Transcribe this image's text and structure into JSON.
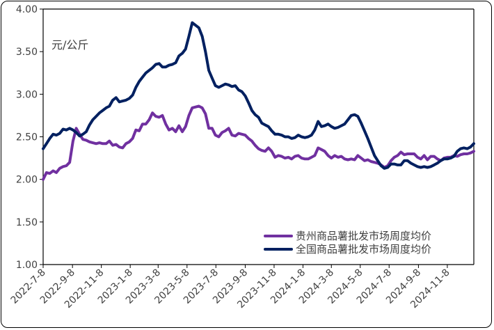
{
  "chart_data": {
    "type": "line",
    "unit_label": "元/公斤",
    "ylim": [
      1.0,
      4.0
    ],
    "yticks": [
      "1.00",
      "1.50",
      "2.00",
      "2.50",
      "3.00",
      "3.50",
      "4.00"
    ],
    "xticks": [
      "2022-7-8",
      "2022-9-8",
      "2022-11-8",
      "2023-1-8",
      "2023-3-8",
      "2023-5-8",
      "2023-7-8",
      "2023-9-8",
      "2023-11-8",
      "2024-1-8",
      "2024-3-8",
      "2024-5-8",
      "2024-7-8",
      "2024-9-8",
      "2024-11-8"
    ],
    "x_start": "2022-07-08",
    "x_end": "2025-01-03",
    "grid": false,
    "legend_position": "bottom-right",
    "series": [
      {
        "name": "贵州商品薯批发市场周度均价",
        "color": "#7030A0",
        "points": [
          [
            "2022-07-08",
            2.0
          ],
          [
            "2022-07-15",
            2.08
          ],
          [
            "2022-07-22",
            2.07
          ],
          [
            "2022-07-29",
            2.1
          ],
          [
            "2022-08-05",
            2.08
          ],
          [
            "2022-08-12",
            2.13
          ],
          [
            "2022-08-19",
            2.15
          ],
          [
            "2022-08-26",
            2.16
          ],
          [
            "2022-09-02",
            2.2
          ],
          [
            "2022-09-09",
            2.45
          ],
          [
            "2022-09-16",
            2.6
          ],
          [
            "2022-09-23",
            2.53
          ],
          [
            "2022-09-30",
            2.47
          ],
          [
            "2022-10-07",
            2.46
          ],
          [
            "2022-10-14",
            2.44
          ],
          [
            "2022-10-21",
            2.43
          ],
          [
            "2022-10-28",
            2.42
          ],
          [
            "2022-11-04",
            2.43
          ],
          [
            "2022-11-11",
            2.42
          ],
          [
            "2022-11-18",
            2.42
          ],
          [
            "2022-11-25",
            2.45
          ],
          [
            "2022-12-02",
            2.4
          ],
          [
            "2022-12-09",
            2.41
          ],
          [
            "2022-12-16",
            2.38
          ],
          [
            "2022-12-23",
            2.37
          ],
          [
            "2022-12-30",
            2.42
          ],
          [
            "2023-01-06",
            2.44
          ],
          [
            "2023-01-13",
            2.48
          ],
          [
            "2023-01-20",
            2.58
          ],
          [
            "2023-01-27",
            2.57
          ],
          [
            "2023-02-03",
            2.65
          ],
          [
            "2023-02-10",
            2.65
          ],
          [
            "2023-02-17",
            2.7
          ],
          [
            "2023-02-24",
            2.78
          ],
          [
            "2023-03-03",
            2.74
          ],
          [
            "2023-03-10",
            2.73
          ],
          [
            "2023-03-17",
            2.75
          ],
          [
            "2023-03-24",
            2.65
          ],
          [
            "2023-03-31",
            2.58
          ],
          [
            "2023-04-07",
            2.6
          ],
          [
            "2023-04-14",
            2.56
          ],
          [
            "2023-04-21",
            2.63
          ],
          [
            "2023-04-28",
            2.56
          ],
          [
            "2023-05-05",
            2.62
          ],
          [
            "2023-05-12",
            2.75
          ],
          [
            "2023-05-19",
            2.84
          ],
          [
            "2023-05-26",
            2.85
          ],
          [
            "2023-06-02",
            2.86
          ],
          [
            "2023-06-09",
            2.84
          ],
          [
            "2023-06-16",
            2.77
          ],
          [
            "2023-06-23",
            2.6
          ],
          [
            "2023-06-30",
            2.6
          ],
          [
            "2023-07-07",
            2.52
          ],
          [
            "2023-07-14",
            2.5
          ],
          [
            "2023-07-21",
            2.55
          ],
          [
            "2023-07-28",
            2.57
          ],
          [
            "2023-08-04",
            2.6
          ],
          [
            "2023-08-11",
            2.52
          ],
          [
            "2023-08-18",
            2.51
          ],
          [
            "2023-08-25",
            2.54
          ],
          [
            "2023-09-01",
            2.53
          ],
          [
            "2023-09-08",
            2.52
          ],
          [
            "2023-09-15",
            2.48
          ],
          [
            "2023-09-22",
            2.45
          ],
          [
            "2023-09-29",
            2.4
          ],
          [
            "2023-10-06",
            2.36
          ],
          [
            "2023-10-13",
            2.34
          ],
          [
            "2023-10-20",
            2.33
          ],
          [
            "2023-10-27",
            2.37
          ],
          [
            "2023-11-03",
            2.33
          ],
          [
            "2023-11-10",
            2.26
          ],
          [
            "2023-11-17",
            2.28
          ],
          [
            "2023-11-24",
            2.27
          ],
          [
            "2023-12-01",
            2.25
          ],
          [
            "2023-12-08",
            2.26
          ],
          [
            "2023-12-15",
            2.24
          ],
          [
            "2023-12-22",
            2.27
          ],
          [
            "2023-12-29",
            2.28
          ],
          [
            "2024-01-05",
            2.25
          ],
          [
            "2024-01-12",
            2.24
          ],
          [
            "2024-01-19",
            2.24
          ],
          [
            "2024-01-26",
            2.26
          ],
          [
            "2024-02-02",
            2.28
          ],
          [
            "2024-02-09",
            2.37
          ],
          [
            "2024-02-16",
            2.35
          ],
          [
            "2024-02-23",
            2.33
          ],
          [
            "2024-03-01",
            2.28
          ],
          [
            "2024-03-08",
            2.25
          ],
          [
            "2024-03-15",
            2.28
          ],
          [
            "2024-03-22",
            2.26
          ],
          [
            "2024-03-29",
            2.27
          ],
          [
            "2024-04-05",
            2.24
          ],
          [
            "2024-04-12",
            2.23
          ],
          [
            "2024-04-19",
            2.24
          ],
          [
            "2024-04-26",
            2.23
          ],
          [
            "2024-05-03",
            2.28
          ],
          [
            "2024-05-10",
            2.25
          ],
          [
            "2024-05-17",
            2.22
          ],
          [
            "2024-05-24",
            2.23
          ],
          [
            "2024-05-31",
            2.21
          ],
          [
            "2024-06-07",
            2.2
          ],
          [
            "2024-06-14",
            2.19
          ],
          [
            "2024-06-21",
            2.17
          ],
          [
            "2024-06-28",
            2.14
          ],
          [
            "2024-07-05",
            2.16
          ],
          [
            "2024-07-12",
            2.22
          ],
          [
            "2024-07-19",
            2.26
          ],
          [
            "2024-07-26",
            2.28
          ],
          [
            "2024-08-02",
            2.32
          ],
          [
            "2024-08-09",
            2.29
          ],
          [
            "2024-08-16",
            2.3
          ],
          [
            "2024-08-23",
            2.3
          ],
          [
            "2024-08-30",
            2.3
          ],
          [
            "2024-09-06",
            2.26
          ],
          [
            "2024-09-13",
            2.24
          ],
          [
            "2024-09-20",
            2.28
          ],
          [
            "2024-09-27",
            2.23
          ],
          [
            "2024-10-04",
            2.27
          ],
          [
            "2024-10-11",
            2.27
          ],
          [
            "2024-10-18",
            2.24
          ],
          [
            "2024-10-25",
            2.22
          ],
          [
            "2024-11-01",
            2.25
          ],
          [
            "2024-11-08",
            2.26
          ],
          [
            "2024-11-15",
            2.26
          ],
          [
            "2024-11-22",
            2.28
          ],
          [
            "2024-11-29",
            2.27
          ],
          [
            "2024-12-06",
            2.29
          ],
          [
            "2024-12-13",
            2.3
          ],
          [
            "2024-12-20",
            2.3
          ],
          [
            "2024-12-27",
            2.31
          ],
          [
            "2025-01-03",
            2.33
          ]
        ]
      },
      {
        "name": "全国商品薯批发市场周度均价",
        "color": "#002060",
        "points": [
          [
            "2022-07-08",
            2.36
          ],
          [
            "2022-07-15",
            2.42
          ],
          [
            "2022-07-22",
            2.48
          ],
          [
            "2022-07-29",
            2.53
          ],
          [
            "2022-08-05",
            2.52
          ],
          [
            "2022-08-12",
            2.54
          ],
          [
            "2022-08-19",
            2.59
          ],
          [
            "2022-08-26",
            2.58
          ],
          [
            "2022-09-02",
            2.6
          ],
          [
            "2022-09-09",
            2.58
          ],
          [
            "2022-09-16",
            2.55
          ],
          [
            "2022-09-23",
            2.51
          ],
          [
            "2022-09-30",
            2.53
          ],
          [
            "2022-10-07",
            2.56
          ],
          [
            "2022-10-14",
            2.64
          ],
          [
            "2022-10-21",
            2.7
          ],
          [
            "2022-10-28",
            2.74
          ],
          [
            "2022-11-04",
            2.78
          ],
          [
            "2022-11-11",
            2.81
          ],
          [
            "2022-11-18",
            2.84
          ],
          [
            "2022-11-25",
            2.86
          ],
          [
            "2022-12-02",
            2.93
          ],
          [
            "2022-12-09",
            2.96
          ],
          [
            "2022-12-16",
            2.91
          ],
          [
            "2022-12-23",
            2.92
          ],
          [
            "2022-12-30",
            2.93
          ],
          [
            "2023-01-06",
            2.95
          ],
          [
            "2023-01-13",
            2.99
          ],
          [
            "2023-01-20",
            3.08
          ],
          [
            "2023-01-27",
            3.15
          ],
          [
            "2023-02-03",
            3.2
          ],
          [
            "2023-02-10",
            3.25
          ],
          [
            "2023-02-17",
            3.28
          ],
          [
            "2023-02-24",
            3.31
          ],
          [
            "2023-03-03",
            3.35
          ],
          [
            "2023-03-10",
            3.36
          ],
          [
            "2023-03-17",
            3.32
          ],
          [
            "2023-03-24",
            3.32
          ],
          [
            "2023-03-31",
            3.34
          ],
          [
            "2023-04-07",
            3.35
          ],
          [
            "2023-04-14",
            3.37
          ],
          [
            "2023-04-21",
            3.45
          ],
          [
            "2023-04-28",
            3.48
          ],
          [
            "2023-05-05",
            3.53
          ],
          [
            "2023-05-12",
            3.68
          ],
          [
            "2023-05-19",
            3.84
          ],
          [
            "2023-05-26",
            3.81
          ],
          [
            "2023-06-02",
            3.78
          ],
          [
            "2023-06-09",
            3.68
          ],
          [
            "2023-06-16",
            3.5
          ],
          [
            "2023-06-23",
            3.28
          ],
          [
            "2023-06-30",
            3.19
          ],
          [
            "2023-07-07",
            3.1
          ],
          [
            "2023-07-14",
            3.08
          ],
          [
            "2023-07-21",
            3.1
          ],
          [
            "2023-07-28",
            3.12
          ],
          [
            "2023-08-04",
            3.11
          ],
          [
            "2023-08-11",
            3.09
          ],
          [
            "2023-08-18",
            3.1
          ],
          [
            "2023-08-25",
            3.05
          ],
          [
            "2023-09-01",
            3.03
          ],
          [
            "2023-09-08",
            2.98
          ],
          [
            "2023-09-15",
            2.9
          ],
          [
            "2023-09-22",
            2.81
          ],
          [
            "2023-09-29",
            2.76
          ],
          [
            "2023-10-06",
            2.73
          ],
          [
            "2023-10-13",
            2.66
          ],
          [
            "2023-10-20",
            2.64
          ],
          [
            "2023-10-27",
            2.62
          ],
          [
            "2023-11-03",
            2.57
          ],
          [
            "2023-11-10",
            2.53
          ],
          [
            "2023-11-17",
            2.53
          ],
          [
            "2023-11-24",
            2.52
          ],
          [
            "2023-12-01",
            2.5
          ],
          [
            "2023-12-08",
            2.5
          ],
          [
            "2023-12-15",
            2.48
          ],
          [
            "2023-12-22",
            2.49
          ],
          [
            "2023-12-29",
            2.52
          ],
          [
            "2024-01-05",
            2.5
          ],
          [
            "2024-01-12",
            2.49
          ],
          [
            "2024-01-19",
            2.5
          ],
          [
            "2024-01-26",
            2.52
          ],
          [
            "2024-02-02",
            2.58
          ],
          [
            "2024-02-09",
            2.68
          ],
          [
            "2024-02-16",
            2.62
          ],
          [
            "2024-02-23",
            2.63
          ],
          [
            "2024-03-01",
            2.65
          ],
          [
            "2024-03-08",
            2.62
          ],
          [
            "2024-03-15",
            2.6
          ],
          [
            "2024-03-22",
            2.61
          ],
          [
            "2024-03-29",
            2.63
          ],
          [
            "2024-04-05",
            2.65
          ],
          [
            "2024-04-12",
            2.7
          ],
          [
            "2024-04-19",
            2.75
          ],
          [
            "2024-04-26",
            2.76
          ],
          [
            "2024-05-03",
            2.74
          ],
          [
            "2024-05-10",
            2.66
          ],
          [
            "2024-05-17",
            2.57
          ],
          [
            "2024-05-24",
            2.48
          ],
          [
            "2024-05-31",
            2.38
          ],
          [
            "2024-06-07",
            2.28
          ],
          [
            "2024-06-14",
            2.22
          ],
          [
            "2024-06-21",
            2.16
          ],
          [
            "2024-06-28",
            2.13
          ],
          [
            "2024-07-05",
            2.14
          ],
          [
            "2024-07-12",
            2.18
          ],
          [
            "2024-07-19",
            2.18
          ],
          [
            "2024-07-26",
            2.17
          ],
          [
            "2024-08-02",
            2.17
          ],
          [
            "2024-08-09",
            2.22
          ],
          [
            "2024-08-16",
            2.22
          ],
          [
            "2024-08-23",
            2.19
          ],
          [
            "2024-08-30",
            2.17
          ],
          [
            "2024-09-06",
            2.15
          ],
          [
            "2024-09-13",
            2.14
          ],
          [
            "2024-09-20",
            2.15
          ],
          [
            "2024-09-27",
            2.14
          ],
          [
            "2024-10-04",
            2.15
          ],
          [
            "2024-10-11",
            2.17
          ],
          [
            "2024-10-18",
            2.19
          ],
          [
            "2024-10-25",
            2.22
          ],
          [
            "2024-11-01",
            2.24
          ],
          [
            "2024-11-08",
            2.24
          ],
          [
            "2024-11-15",
            2.25
          ],
          [
            "2024-11-22",
            2.27
          ],
          [
            "2024-11-29",
            2.33
          ],
          [
            "2024-12-06",
            2.36
          ],
          [
            "2024-12-13",
            2.37
          ],
          [
            "2024-12-20",
            2.36
          ],
          [
            "2024-12-27",
            2.38
          ],
          [
            "2025-01-03",
            2.42
          ]
        ]
      }
    ]
  }
}
